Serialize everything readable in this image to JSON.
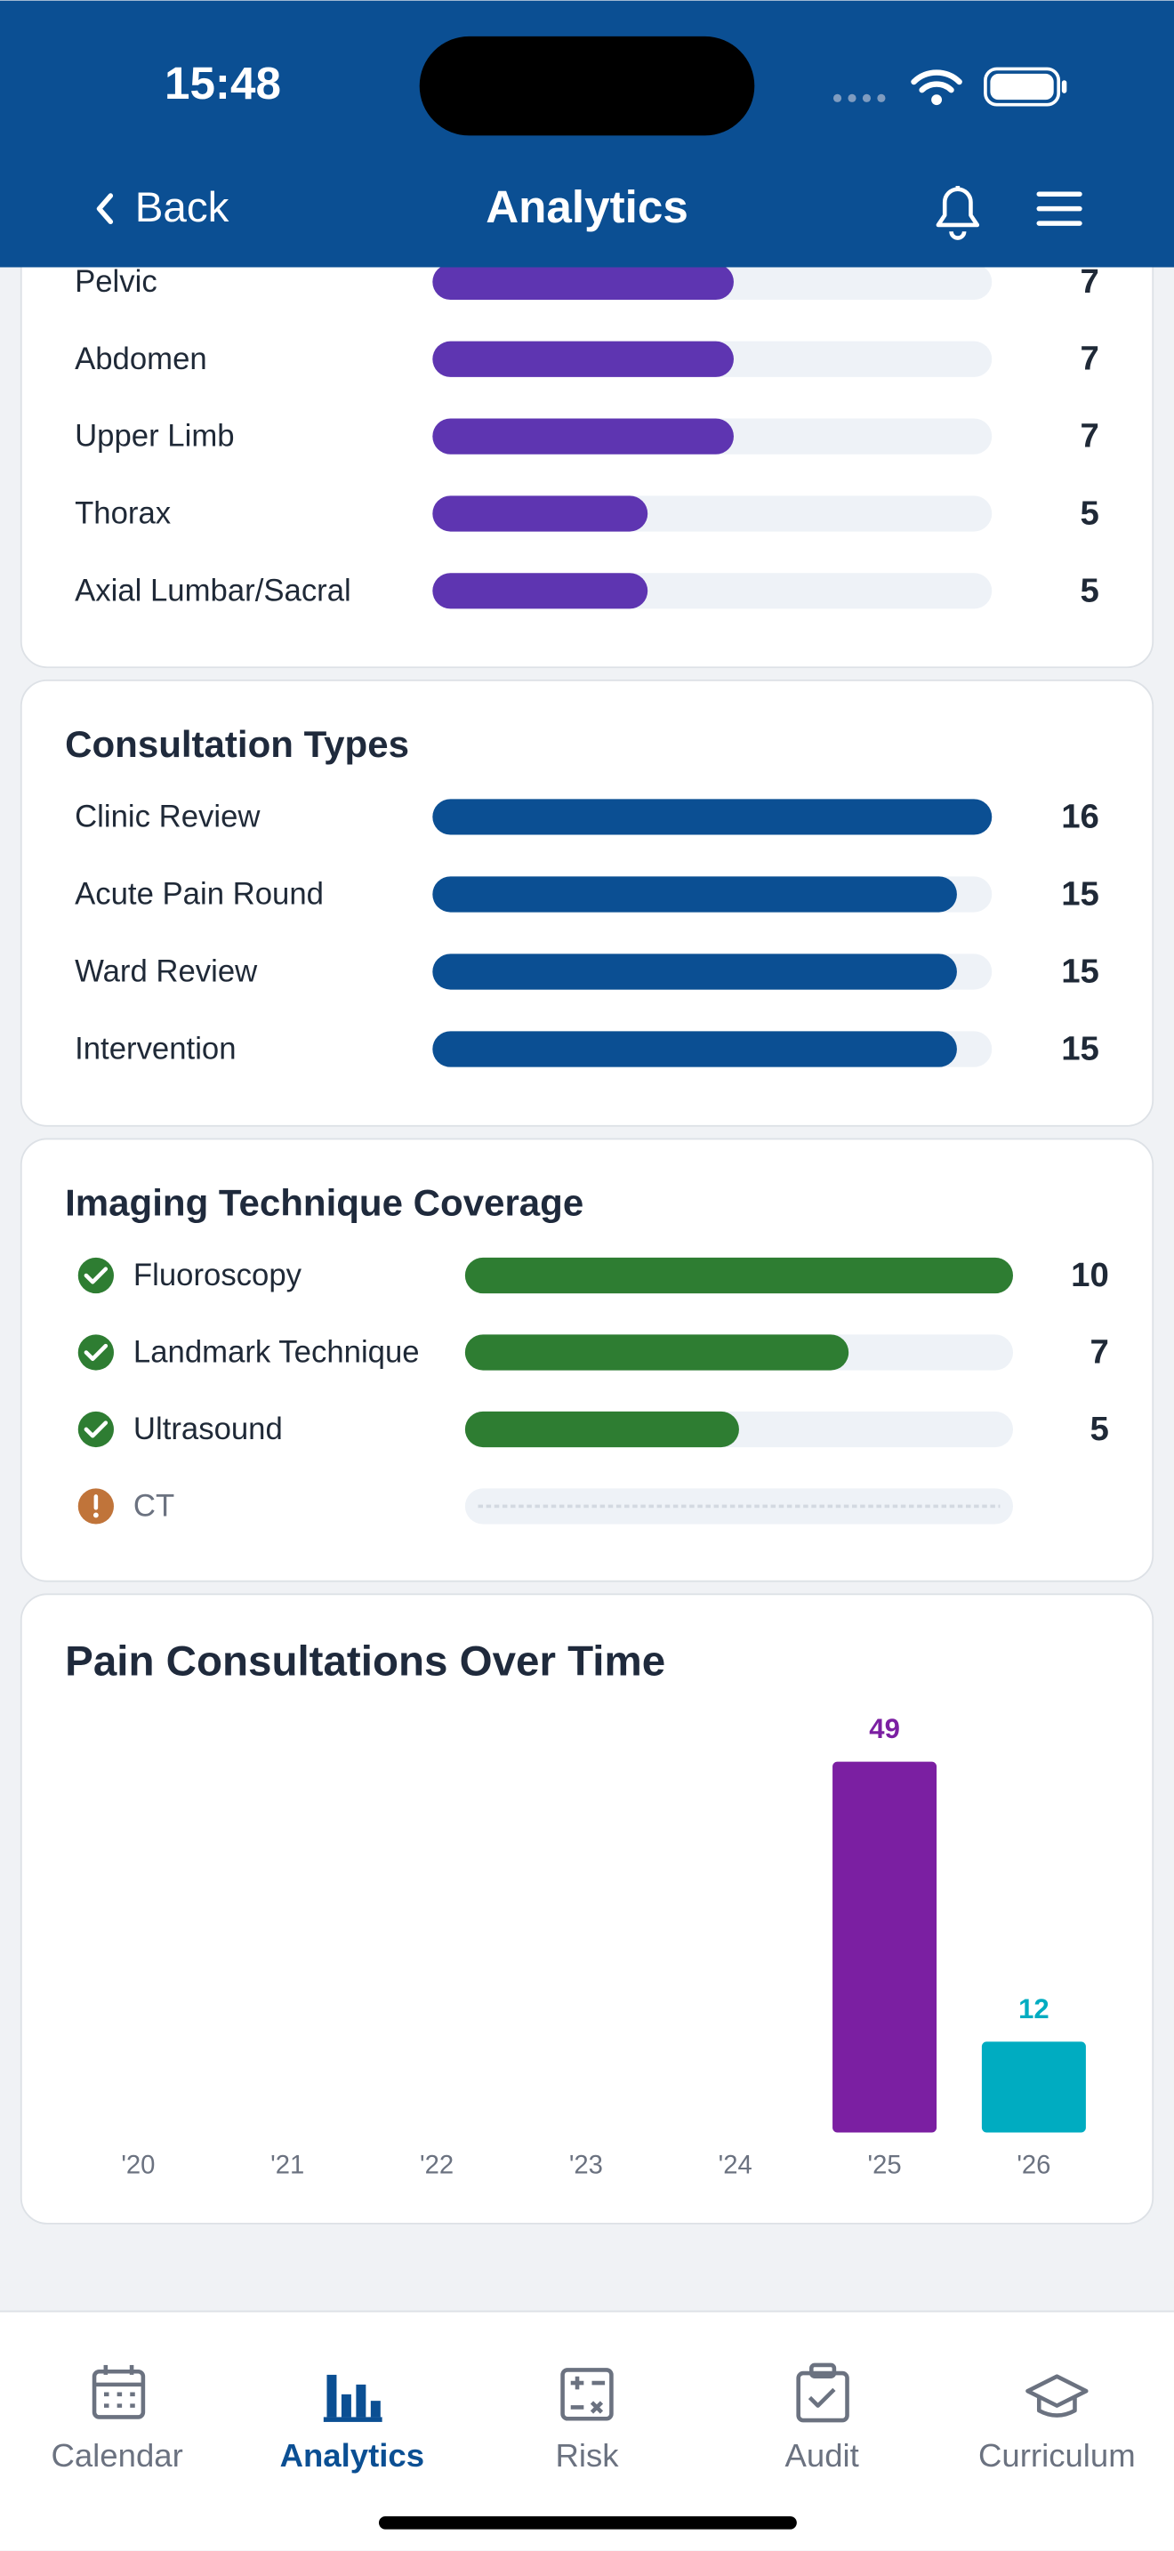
{
  "status_bar": {
    "time": "15:48"
  },
  "nav": {
    "back": "Back",
    "title": "Analytics"
  },
  "body_regions": {
    "xlim": [
      0,
      13
    ],
    "color": "#5e35b1",
    "rows": [
      {
        "label": "Pelvic",
        "value": 7
      },
      {
        "label": "Abdomen",
        "value": 7
      },
      {
        "label": "Upper Limb",
        "value": 7
      },
      {
        "label": "Thorax",
        "value": 5
      },
      {
        "label": "Axial Lumbar/Sacral",
        "value": 5
      }
    ]
  },
  "consultation_types": {
    "title": "Consultation Types",
    "xlim": [
      0,
      16
    ],
    "color": "#0b4f93",
    "rows": [
      {
        "label": "Clinic Review",
        "value": 16
      },
      {
        "label": "Acute Pain Round",
        "value": 15
      },
      {
        "label": "Ward Review",
        "value": 15
      },
      {
        "label": "Intervention",
        "value": 15
      }
    ]
  },
  "imaging_coverage": {
    "title": "Imaging Technique Coverage",
    "xlim": [
      0,
      10
    ],
    "color": "#2e7d32",
    "rows": [
      {
        "label": "Fluoroscopy",
        "value": 10
      },
      {
        "label": "Landmark Technique",
        "value": 7
      },
      {
        "label": "Ultrasound",
        "value": 5
      },
      {
        "label": "CT",
        "value": null
      }
    ]
  },
  "chart_data": {
    "type": "bar",
    "title": "Pain Consultations Over Time",
    "categories": [
      "'20",
      "'21",
      "'22",
      "'23",
      "'24",
      "'25",
      "'26"
    ],
    "values": [
      0,
      0,
      0,
      0,
      0,
      49,
      12
    ],
    "colors": [
      "#7b1fa2",
      "#7b1fa2",
      "#7b1fa2",
      "#7b1fa2",
      "#7b1fa2",
      "#7b1fa2",
      "#00acc1"
    ],
    "ylim": [
      0,
      49
    ]
  },
  "tab_bar": {
    "tabs": [
      {
        "label": "Calendar",
        "active": false
      },
      {
        "label": "Analytics",
        "active": true
      },
      {
        "label": "Risk",
        "active": false
      },
      {
        "label": "Audit",
        "active": false
      },
      {
        "label": "Curriculum",
        "active": false
      }
    ]
  }
}
